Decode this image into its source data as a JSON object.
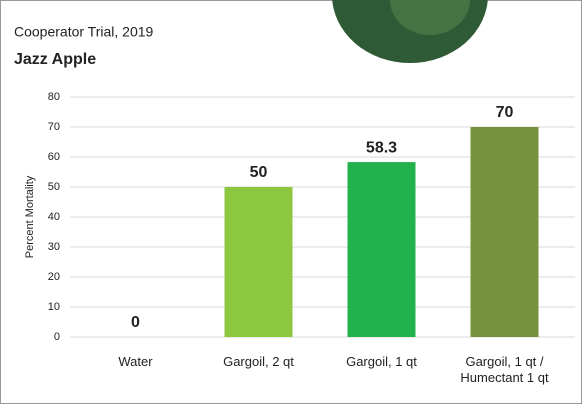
{
  "chart_data": {
    "type": "bar",
    "title": "Cooperator Trial, 2019",
    "subtitle": "Jazz Apple",
    "y_label": "Percent Mortality",
    "categories": [
      "Water",
      "Gargoil, 2 qt",
      "Gargoil, 1 qt",
      "Gargoil, 1 qt / Humectant 1 qt"
    ],
    "values": [
      0,
      50,
      58.3,
      70
    ],
    "colors": [
      "#8dc63f",
      "#8dc63f",
      "#22b14c",
      "#76923c"
    ],
    "ylim": [
      0,
      80
    ],
    "yticks": [
      0,
      10,
      20,
      30,
      40,
      50,
      60,
      70,
      80
    ],
    "grid": true
  }
}
